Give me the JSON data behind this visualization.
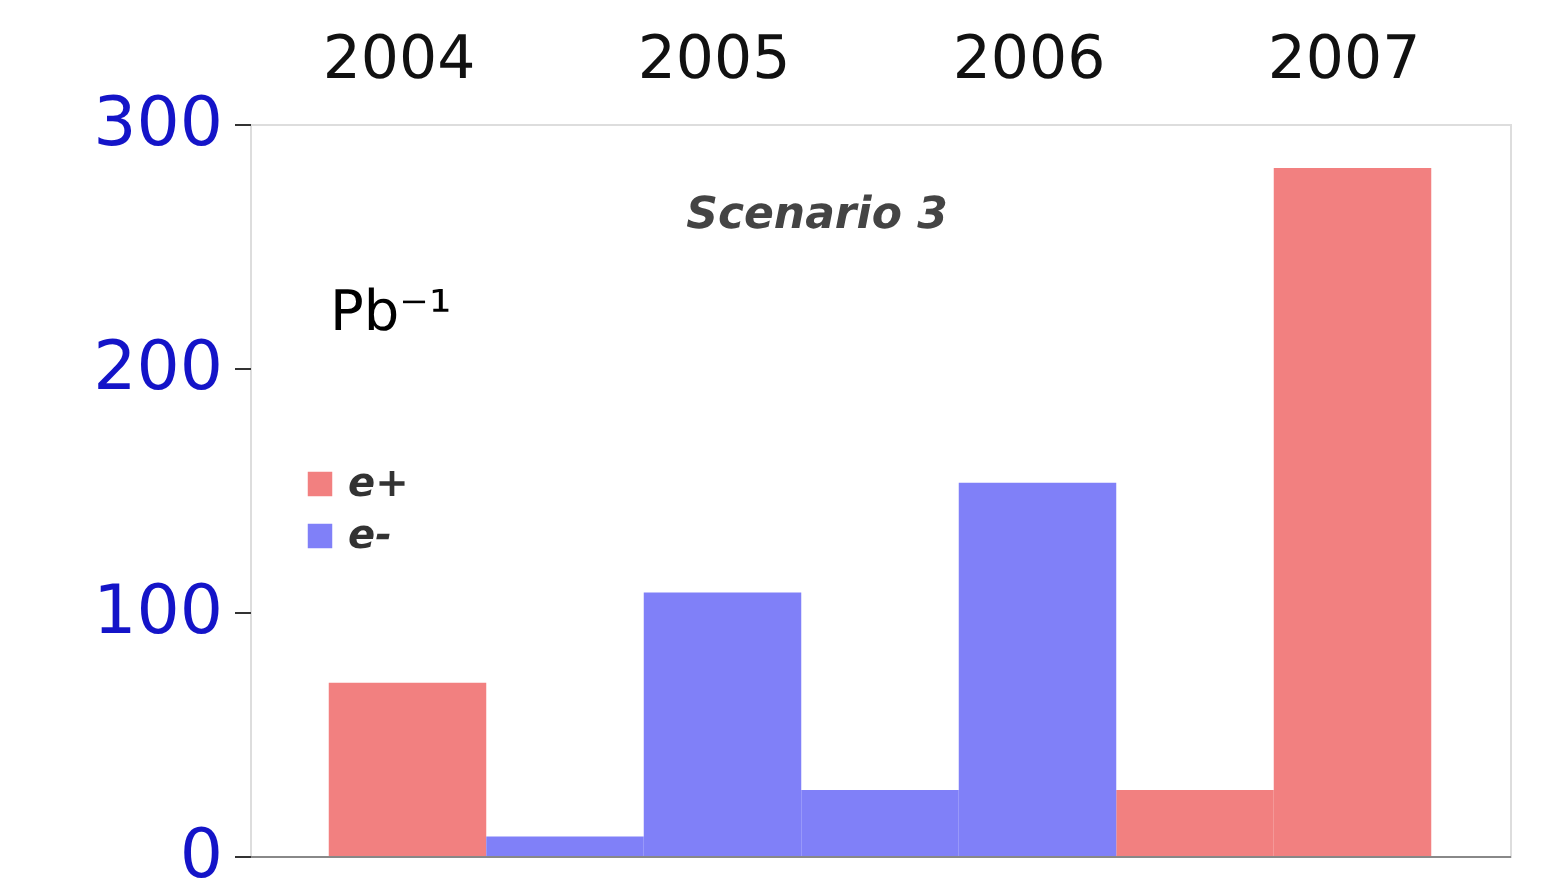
{
  "chart_data": {
    "type": "bar",
    "title": "Scenario 3",
    "ylabel": "Pb⁻¹",
    "annotations": [
      "2004",
      "2005",
      "2006",
      "2007"
    ],
    "categories": [
      null,
      null,
      null,
      null,
      null,
      null,
      null
    ],
    "series": [
      {
        "name": "e+",
        "color": "#f28080",
        "values": [
          71,
          null,
          null,
          null,
          null,
          27,
          282
        ]
      },
      {
        "name": "e-",
        "color": "#8080f8",
        "values": [
          null,
          8,
          108,
          27,
          153,
          null,
          null
        ]
      }
    ],
    "ylim": [
      0,
      300
    ],
    "yticks": [
      0,
      100,
      200,
      300
    ],
    "tick_labels": "y",
    "legend": "left",
    "grid": false
  }
}
